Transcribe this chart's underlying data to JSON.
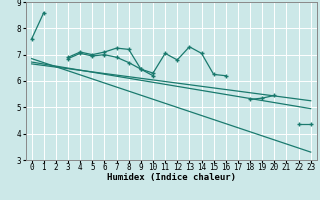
{
  "xlabel": "Humidex (Indice chaleur)",
  "background_color": "#cce8e8",
  "grid_color": "#ffffff",
  "line_color": "#1a7a6e",
  "x_values": [
    0,
    1,
    2,
    3,
    4,
    5,
    6,
    7,
    8,
    9,
    10,
    11,
    12,
    13,
    14,
    15,
    16,
    17,
    18,
    19,
    20,
    21,
    22,
    23
  ],
  "series1": [
    7.6,
    8.6,
    null,
    6.9,
    7.1,
    7.0,
    7.1,
    7.25,
    7.2,
    6.45,
    6.3,
    7.05,
    6.8,
    7.3,
    7.05,
    6.25,
    6.2,
    null,
    5.3,
    5.35,
    5.45,
    null,
    4.35,
    4.35
  ],
  "series2": [
    null,
    null,
    null,
    6.85,
    7.05,
    6.95,
    7.0,
    6.9,
    6.7,
    6.45,
    6.2,
    null,
    null,
    null,
    null,
    null,
    null,
    null,
    null,
    null,
    null,
    null,
    null,
    null
  ],
  "line1_x": [
    0,
    23
  ],
  "line1_y": [
    6.85,
    3.3
  ],
  "line2_x": [
    0,
    23
  ],
  "line2_y": [
    6.72,
    4.95
  ],
  "line3_x": [
    0,
    23
  ],
  "line3_y": [
    6.65,
    5.25
  ],
  "ylim": [
    3.0,
    9.0
  ],
  "xlim": [
    -0.5,
    23.5
  ],
  "yticks": [
    3,
    4,
    5,
    6,
    7,
    8,
    9
  ],
  "xticks": [
    0,
    1,
    2,
    3,
    4,
    5,
    6,
    7,
    8,
    9,
    10,
    11,
    12,
    13,
    14,
    15,
    16,
    17,
    18,
    19,
    20,
    21,
    22,
    23
  ],
  "tick_fontsize": 5.5,
  "xlabel_fontsize": 6.5
}
